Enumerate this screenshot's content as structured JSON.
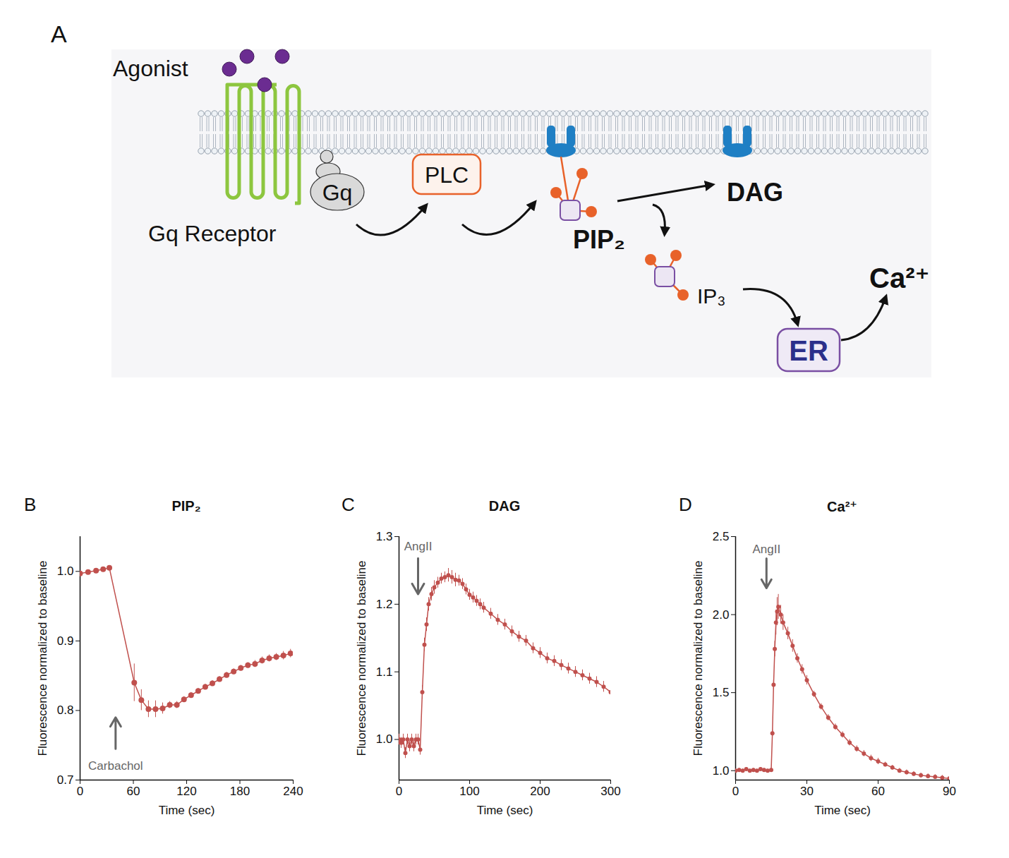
{
  "diagram": {
    "panel": "A",
    "agonist": "Agonist",
    "receptor": "Gq Receptor",
    "g_protein": "Gq",
    "enzyme": "PLC",
    "substrate": "PIP₂",
    "products": [
      "DAG",
      "IP₃"
    ],
    "store": "ER",
    "ion": "Ca²⁺"
  },
  "chart_data": [
    {
      "panel": "B",
      "type": "line",
      "title": "PIP₂",
      "x_label": "Time (sec)",
      "y_label": "Fluorescence normalized to baseline",
      "color": "#c0504d",
      "marker": "circle",
      "line_style": "solid",
      "grid": false,
      "x": [
        0,
        9,
        18,
        26,
        33,
        61,
        69,
        77,
        85,
        93,
        101,
        109,
        117,
        125,
        133,
        141,
        149,
        157,
        165,
        173,
        181,
        189,
        197,
        205,
        213,
        221,
        229,
        237
      ],
      "values": [
        0.997,
        0.999,
        1.001,
        1.003,
        1.005,
        0.84,
        0.815,
        0.802,
        0.802,
        0.803,
        0.808,
        0.808,
        0.816,
        0.822,
        0.828,
        0.834,
        0.839,
        0.845,
        0.851,
        0.856,
        0.861,
        0.865,
        0.867,
        0.872,
        0.875,
        0.877,
        0.879,
        0.882
      ],
      "errors": [
        0.002,
        0.002,
        0.002,
        0.002,
        0.002,
        0.027,
        0.015,
        0.012,
        0.012,
        0.008,
        0.005,
        0.005,
        0.004,
        0.004,
        0.004,
        0.004,
        0.004,
        0.004,
        0.004,
        0.004,
        0.004,
        0.004,
        0.005,
        0.005,
        0.005,
        0.005,
        0.006,
        0.006
      ],
      "xlim": [
        0,
        240
      ],
      "xticks": [
        0,
        60,
        120,
        180,
        240
      ],
      "ylim": [
        0.7,
        1.05
      ],
      "yticks": [
        0.7,
        0.8,
        0.9,
        {
          "value": 1,
          "label": "1.0"
        }
      ],
      "annotations": [
        {
          "text": "Carbachol",
          "x": 40,
          "y": 0.72,
          "arrow_y": [
            0.745,
            0.79
          ]
        }
      ]
    },
    {
      "panel": "C",
      "type": "line",
      "title": "DAG",
      "x_label": "Time (sec)",
      "y_label": "Fluorescence normalized to baseline",
      "color": "#c0504d",
      "marker": "circle",
      "line_style": "solid",
      "grid": false,
      "x": [
        0,
        3,
        6,
        9,
        12,
        15,
        18,
        21,
        24,
        27,
        30,
        33,
        36,
        39,
        42,
        46,
        50,
        55,
        60,
        65,
        70,
        75,
        80,
        85,
        90,
        95,
        100,
        105,
        110,
        115,
        120,
        130,
        140,
        150,
        160,
        170,
        180,
        190,
        200,
        210,
        220,
        230,
        240,
        250,
        260,
        270,
        280,
        290,
        300
      ],
      "values": [
        1.0,
        0.995,
        1.0,
        0.98,
        1.0,
        0.99,
        1.0,
        0.99,
        1.0,
        1.0,
        0.985,
        1.07,
        1.14,
        1.17,
        1.2,
        1.215,
        1.225,
        1.232,
        1.238,
        1.24,
        1.243,
        1.24,
        1.236,
        1.235,
        1.23,
        1.222,
        1.214,
        1.21,
        1.205,
        1.2,
        1.195,
        1.186,
        1.177,
        1.17,
        1.16,
        1.152,
        1.146,
        1.135,
        1.128,
        1.12,
        1.116,
        1.11,
        1.105,
        1.1,
        1.095,
        1.09,
        1.085,
        1.078,
        1.07
      ],
      "errors": [
        0.008,
        0.008,
        0.008,
        0.008,
        0.008,
        0.008,
        0.008,
        0.008,
        0.008,
        0.008,
        0.008,
        0.01,
        0.01,
        0.01,
        0.01,
        0.01,
        0.01,
        0.008,
        0.008,
        0.008,
        0.01,
        0.01,
        0.01,
        0.008,
        0.008,
        0.008,
        0.008,
        0.008,
        0.008,
        0.008,
        0.008,
        0.008,
        0.008,
        0.008,
        0.008,
        0.008,
        0.008,
        0.008,
        0.008,
        0.008,
        0.008,
        0.008,
        0.008,
        0.008,
        0.008,
        0.008,
        0.008,
        0.008,
        0.008
      ],
      "xlim": [
        0,
        300
      ],
      "xticks": [
        0,
        100,
        200,
        300
      ],
      "ylim": [
        0.94,
        1.3
      ],
      "yticks": [
        {
          "value": 1,
          "label": "1.0"
        },
        1.1,
        1.2,
        1.3
      ],
      "annotations": [
        {
          "text": "AngII",
          "x": 27,
          "y": 1.285,
          "arrow_y": [
            1.268,
            1.215
          ]
        }
      ]
    },
    {
      "panel": "D",
      "type": "line",
      "title": "Ca²⁺",
      "x_label": "Time (sec)",
      "y_label": "Fluorescence normalized to baseline",
      "color": "#c0504d",
      "marker": "circle",
      "line_style": "solid",
      "grid": false,
      "x": [
        0,
        1.5,
        3,
        4.5,
        6,
        7.5,
        9,
        10.5,
        12,
        13.5,
        15,
        15.5,
        16,
        16.5,
        17,
        17.5,
        18,
        19,
        20,
        22,
        24,
        26,
        28,
        30,
        33,
        36,
        39,
        42,
        45,
        48,
        51,
        54,
        57,
        60,
        63,
        66,
        69,
        72,
        75,
        78,
        81,
        84,
        87,
        90
      ],
      "values": [
        1.0,
        1.005,
        1.0,
        1.01,
        1.0,
        1.005,
        1.0,
        1.01,
        1.005,
        1.0,
        1.005,
        1.24,
        1.55,
        1.78,
        1.95,
        2.02,
        2.05,
        2.0,
        1.95,
        1.88,
        1.8,
        1.72,
        1.65,
        1.58,
        1.49,
        1.41,
        1.34,
        1.28,
        1.23,
        1.18,
        1.14,
        1.11,
        1.08,
        1.06,
        1.04,
        1.02,
        1.0,
        0.99,
        0.98,
        0.97,
        0.965,
        0.96,
        0.955,
        0.95
      ],
      "errors": [
        0.01,
        0.01,
        0.01,
        0.01,
        0.01,
        0.01,
        0.01,
        0.01,
        0.01,
        0.01,
        0.01,
        0.02,
        0.03,
        0.05,
        0.08,
        0.09,
        0.08,
        0.06,
        0.05,
        0.04,
        0.04,
        0.03,
        0.03,
        0.03,
        0.02,
        0.02,
        0.02,
        0.02,
        0.02,
        0.02,
        0.02,
        0.02,
        0.02,
        0.02,
        0.015,
        0.015,
        0.015,
        0.015,
        0.015,
        0.015,
        0.015,
        0.015,
        0.015,
        0.015
      ],
      "xlim": [
        0,
        90
      ],
      "xticks": [
        0,
        30,
        60,
        90
      ],
      "ylim": [
        0.94,
        2.5
      ],
      "yticks": [
        {
          "value": 1,
          "label": "1.0"
        },
        1.5,
        {
          "value": 2,
          "label": "2.0"
        },
        2.5
      ],
      "annotations": [
        {
          "text": "AngII",
          "x": 13,
          "y": 2.42,
          "arrow_y": [
            2.36,
            2.17
          ]
        }
      ]
    }
  ]
}
